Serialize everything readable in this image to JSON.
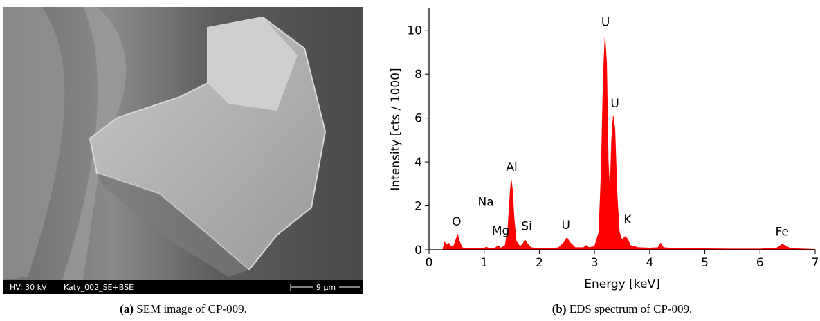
{
  "sem_image": {
    "voltage": "HV: 30 kV",
    "file": "Katy_002_SE+BSE",
    "scale_bar": "9 µm"
  },
  "captions": [
    {
      "label": "(a)",
      "text": "SEM image of CP-009."
    },
    {
      "label": "(b)",
      "text": "EDS spectrum of CP-009."
    }
  ],
  "chart_data": {
    "type": "area",
    "color": "#ff0000",
    "x_label": "Energy [keV]",
    "y_label": "Intensity [cts / 1000]",
    "xlim": [
      0,
      7
    ],
    "xticks": [
      0,
      1,
      2,
      3,
      4,
      5,
      6,
      7
    ],
    "ylim": [
      0,
      11
    ],
    "yticks": [
      0,
      2,
      4,
      6,
      8,
      10
    ],
    "x": [
      0.25,
      0.28,
      0.32,
      0.36,
      0.4,
      0.45,
      0.5,
      0.52,
      0.55,
      0.6,
      0.7,
      0.8,
      0.9,
      1.0,
      1.04,
      1.1,
      1.2,
      1.25,
      1.3,
      1.38,
      1.43,
      1.47,
      1.49,
      1.51,
      1.54,
      1.58,
      1.65,
      1.71,
      1.74,
      1.78,
      1.85,
      2.0,
      2.2,
      2.35,
      2.45,
      2.5,
      2.55,
      2.65,
      2.8,
      2.85,
      2.9,
      3.0,
      3.08,
      3.12,
      3.16,
      3.19,
      3.22,
      3.25,
      3.28,
      3.31,
      3.34,
      3.37,
      3.41,
      3.45,
      3.5,
      3.55,
      3.6,
      3.65,
      3.8,
      4.0,
      4.15,
      4.2,
      4.25,
      4.5,
      5.0,
      5.5,
      6.0,
      6.3,
      6.4,
      6.45,
      6.55,
      7.0
    ],
    "values": [
      0,
      0.35,
      0.25,
      0.3,
      0.15,
      0.2,
      0.55,
      0.7,
      0.4,
      0.1,
      0.05,
      0.08,
      0.05,
      0.08,
      0.12,
      0.05,
      0.08,
      0.2,
      0.08,
      0.2,
      1.0,
      2.6,
      3.2,
      2.8,
      1.5,
      0.4,
      0.15,
      0.3,
      0.45,
      0.3,
      0.1,
      0.05,
      0.05,
      0.1,
      0.35,
      0.55,
      0.35,
      0.1,
      0.1,
      0.2,
      0.1,
      0.15,
      0.8,
      3.5,
      8.0,
      9.7,
      8.5,
      4.0,
      2.5,
      5.0,
      6.1,
      5.5,
      2.5,
      0.8,
      0.45,
      0.6,
      0.5,
      0.2,
      0.1,
      0.08,
      0.1,
      0.3,
      0.1,
      0.06,
      0.05,
      0.04,
      0.04,
      0.08,
      0.25,
      0.2,
      0.06,
      0.02
    ],
    "annotations": [
      {
        "text": "O",
        "x": 0.5,
        "y": 1.1
      },
      {
        "text": "Na",
        "x": 1.03,
        "y": 2.0
      },
      {
        "text": "Mg",
        "x": 1.3,
        "y": 0.7
      },
      {
        "text": "Al",
        "x": 1.5,
        "y": 3.6
      },
      {
        "text": "Si",
        "x": 1.77,
        "y": 0.9
      },
      {
        "text": "U",
        "x": 2.48,
        "y": 0.95
      },
      {
        "text": "U",
        "x": 3.2,
        "y": 10.2
      },
      {
        "text": "U",
        "x": 3.37,
        "y": 6.5
      },
      {
        "text": "K",
        "x": 3.6,
        "y": 1.2
      },
      {
        "text": "Fe",
        "x": 6.4,
        "y": 0.65
      }
    ]
  }
}
